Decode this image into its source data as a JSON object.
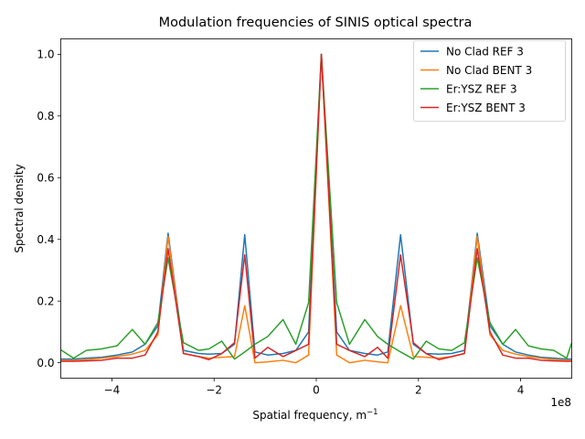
{
  "chart_data": {
    "type": "line",
    "title": "Modulation frequencies of SINIS optical spectra",
    "xlabel": "Spatial frequency, m",
    "xlabel_sup": "−1",
    "ylabel": "Spectral density",
    "x_offset_label": "1e8",
    "xlim": [
      -5.0,
      5.0
    ],
    "ylim": [
      -0.05,
      1.05
    ],
    "xticks": [
      -4,
      -2,
      0,
      2,
      4
    ],
    "xtick_labels": [
      "−4",
      "−2",
      "0",
      "2",
      "4"
    ],
    "yticks": [
      0.0,
      0.2,
      0.4,
      0.6,
      0.8,
      1.0
    ],
    "ytick_labels": [
      "0.0",
      "0.2",
      "0.4",
      "0.6",
      "0.8",
      "1.0"
    ],
    "legend_position": "top-right",
    "grid": false,
    "x": [
      -5.0,
      -4.75,
      -4.5,
      -4.2,
      -3.9,
      -3.6,
      -3.35,
      -3.1,
      -2.9,
      -2.6,
      -2.3,
      -2.1,
      -1.85,
      -1.6,
      -1.4,
      -1.2,
      -0.95,
      -0.65,
      -0.4,
      -0.15,
      0.1,
      0.4,
      0.65,
      0.95,
      1.2,
      1.4,
      1.65,
      1.9,
      2.15,
      2.4,
      2.65,
      2.9,
      3.15,
      3.4,
      3.65,
      3.9,
      4.15,
      4.4,
      4.65,
      4.9,
      5.0
    ],
    "series": [
      {
        "name": "No Clad REF 3",
        "color": "#1f77b4",
        "values": [
          0.012,
          0.012,
          0.015,
          0.018,
          0.025,
          0.035,
          0.06,
          0.12,
          0.42,
          0.04,
          0.03,
          0.028,
          0.03,
          0.06,
          0.415,
          0.035,
          0.025,
          0.03,
          0.04,
          0.1,
          1.0,
          0.1,
          0.04,
          0.03,
          0.025,
          0.035,
          0.415,
          0.06,
          0.03,
          0.028,
          0.03,
          0.04,
          0.42,
          0.12,
          0.06,
          0.035,
          0.025,
          0.018,
          0.015,
          0.012,
          0.012
        ]
      },
      {
        "name": "No Clad BENT 3",
        "color": "#ff7f0e",
        "values": [
          0.008,
          0.008,
          0.01,
          0.015,
          0.02,
          0.028,
          0.04,
          0.09,
          0.41,
          0.03,
          0.02,
          0.015,
          0.018,
          0.02,
          0.185,
          0.0,
          0.003,
          0.008,
          0.0,
          0.025,
          1.0,
          0.025,
          0.0,
          0.008,
          0.003,
          0.0,
          0.185,
          0.02,
          0.018,
          0.015,
          0.02,
          0.03,
          0.41,
          0.09,
          0.04,
          0.028,
          0.02,
          0.015,
          0.01,
          0.008,
          0.008
        ]
      },
      {
        "name": "Er:YSZ REF 3",
        "color": "#2ca02c",
        "values": [
          0.042,
          0.015,
          0.04,
          0.045,
          0.055,
          0.108,
          0.06,
          0.13,
          0.34,
          0.065,
          0.04,
          0.045,
          0.07,
          0.012,
          0.035,
          0.06,
          0.085,
          0.14,
          0.06,
          0.195,
          1.0,
          0.195,
          0.06,
          0.14,
          0.085,
          0.06,
          0.035,
          0.012,
          0.07,
          0.045,
          0.04,
          0.065,
          0.34,
          0.13,
          0.06,
          0.108,
          0.055,
          0.045,
          0.04,
          0.015,
          0.065
        ]
      },
      {
        "name": "Er:YSZ BENT 3",
        "color": "#d62728",
        "values": [
          0.005,
          0.005,
          0.006,
          0.008,
          0.015,
          0.015,
          0.025,
          0.1,
          0.37,
          0.03,
          0.02,
          0.01,
          0.03,
          0.065,
          0.35,
          0.015,
          0.05,
          0.02,
          0.04,
          0.06,
          1.0,
          0.06,
          0.04,
          0.02,
          0.05,
          0.015,
          0.35,
          0.065,
          0.03,
          0.01,
          0.02,
          0.03,
          0.37,
          0.1,
          0.025,
          0.015,
          0.015,
          0.008,
          0.006,
          0.005,
          0.005
        ]
      }
    ]
  }
}
